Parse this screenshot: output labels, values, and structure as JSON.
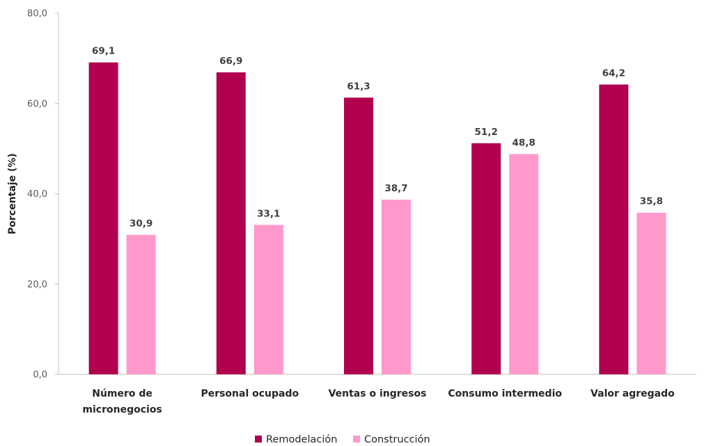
{
  "chart_data": {
    "type": "bar",
    "categories": [
      [
        "Número de",
        "micronegocios"
      ],
      [
        "Personal ocupado"
      ],
      [
        "Ventas o ingresos"
      ],
      [
        "Consumo intermedio"
      ],
      [
        "Valor agregado"
      ]
    ],
    "series": [
      {
        "name": "Remodelación",
        "color": "#B0004E",
        "values": [
          69.1,
          66.9,
          61.3,
          51.2,
          64.2
        ],
        "labels": [
          "69,1",
          "66,9",
          "61,3",
          "51,2",
          "64,2"
        ]
      },
      {
        "name": "Construcción",
        "color": "#FF99CC",
        "values": [
          30.9,
          33.1,
          38.7,
          48.8,
          35.8
        ],
        "labels": [
          "30,9",
          "33,1",
          "38,7",
          "48,8",
          "35,8"
        ]
      }
    ],
    "ylabel": "Porcentaje (%)",
    "xlabel": "",
    "ylim": [
      0,
      80
    ],
    "yticks": [
      0,
      20,
      40,
      60,
      80
    ],
    "ytick_labels": [
      "0,0",
      "20,0",
      "40,0",
      "60,0",
      "80,0"
    ],
    "grid": false,
    "legend_position": "bottom"
  }
}
